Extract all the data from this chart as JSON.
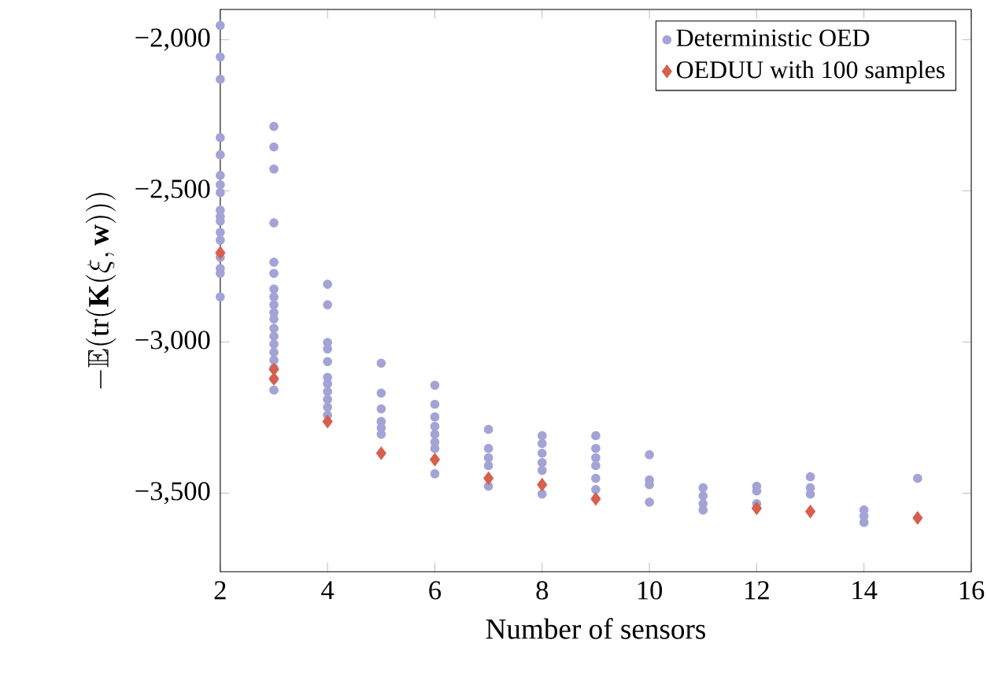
{
  "chart_data": {
    "type": "scatter",
    "xlabel": "Number of sensors",
    "ylabel": "-\\mathbb{E}(\\mathrm{tr}(\\mathbf{K}(\\xi, \\mathbf{w})))",
    "xlim": [
      2,
      16
    ],
    "ylim": [
      -3760,
      -1900
    ],
    "xticks": [
      2,
      4,
      6,
      8,
      10,
      12,
      14,
      16
    ],
    "yticks": [
      {
        "value": -3500,
        "label": "−3,500"
      },
      {
        "value": -3000,
        "label": "−3,000"
      },
      {
        "value": -2500,
        "label": "−2,500"
      },
      {
        "value": -2000,
        "label": "−2,000"
      }
    ],
    "grid": false,
    "legend": "top right",
    "series": [
      {
        "name": "Deterministic OED",
        "color": "#a3a3d6",
        "marker": "circle",
        "x": [
          2,
          2,
          2,
          2,
          2,
          2,
          2,
          2,
          2,
          2,
          2,
          2,
          2,
          2,
          2,
          2,
          2,
          3,
          3,
          3,
          3,
          3,
          3,
          3,
          3,
          3,
          3,
          3,
          3,
          3,
          3,
          3,
          3,
          3,
          3,
          3,
          4,
          4,
          4,
          4,
          4,
          4,
          4,
          4,
          4,
          4,
          4,
          5,
          5,
          5,
          5,
          5,
          5,
          6,
          6,
          6,
          6,
          6,
          6,
          6,
          6,
          7,
          7,
          7,
          7,
          7,
          8,
          8,
          8,
          8,
          8,
          8,
          9,
          9,
          9,
          9,
          9,
          9,
          10,
          10,
          10,
          10,
          11,
          11,
          11,
          11,
          12,
          12,
          12,
          13,
          13,
          13,
          14,
          14,
          14,
          15
        ],
        "values": [
          -1953,
          -2057,
          -2131,
          -2324,
          -2381,
          -2449,
          -2480,
          -2506,
          -2564,
          -2585,
          -2600,
          -2637,
          -2663,
          -2720,
          -2757,
          -2773,
          -2851,
          -2287,
          -2355,
          -2428,
          -2606,
          -2736,
          -2773,
          -2825,
          -2851,
          -2877,
          -2903,
          -2924,
          -2955,
          -2981,
          -3007,
          -3034,
          -3060,
          -3086,
          -3122,
          -3159,
          -2809,
          -2877,
          -3002,
          -3023,
          -3065,
          -3117,
          -3138,
          -3164,
          -3190,
          -3216,
          -3242,
          -3070,
          -3169,
          -3221,
          -3263,
          -3284,
          -3305,
          -3143,
          -3206,
          -3248,
          -3279,
          -3305,
          -3331,
          -3352,
          -3436,
          -3289,
          -3352,
          -3383,
          -3409,
          -3477,
          -3310,
          -3336,
          -3368,
          -3399,
          -3425,
          -3503,
          -3310,
          -3352,
          -3383,
          -3409,
          -3451,
          -3488,
          -3373,
          -3456,
          -3472,
          -3530,
          -3482,
          -3509,
          -3535,
          -3556,
          -3477,
          -3493,
          -3535,
          -3446,
          -3482,
          -3503,
          -3556,
          -3576,
          -3597,
          -3451
        ]
      },
      {
        "name": "OEDUU with 100 samples",
        "color": "#d6604d",
        "marker": "diamond",
        "x": [
          2,
          3,
          3,
          4,
          5,
          6,
          7,
          8,
          9,
          12,
          13,
          15
        ],
        "values": [
          -2705,
          -3091,
          -3122,
          -3263,
          -3368,
          -3389,
          -3451,
          -3472,
          -3519,
          -3550,
          -3561,
          -3582
        ]
      }
    ]
  }
}
